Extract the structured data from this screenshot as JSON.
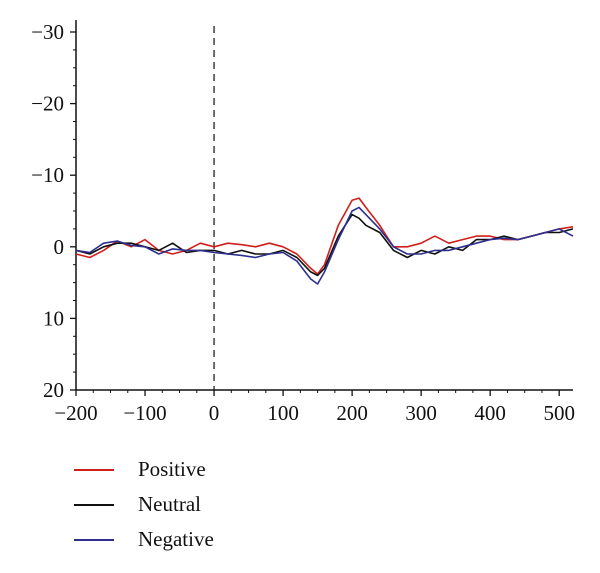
{
  "chart_data": {
    "type": "line",
    "title": "",
    "xlabel": "",
    "ylabel": "",
    "xlim": [
      -200,
      520
    ],
    "ylim": [
      20,
      -30
    ],
    "y_inverted": true,
    "grid": false,
    "legend_position": "bottom-left",
    "vline_at_x": 0,
    "x_ticks": [
      -200,
      -100,
      0,
      100,
      200,
      300,
      400,
      500
    ],
    "x_tick_labels": [
      "−200",
      "−100",
      "0",
      "100",
      "200",
      "300",
      "400",
      "500"
    ],
    "y_ticks": [
      -30,
      -20,
      -10,
      0,
      10,
      20
    ],
    "y_tick_labels": [
      "−30",
      "−20",
      "−10",
      "0",
      "10",
      "20"
    ],
    "x": [
      -200,
      -180,
      -160,
      -140,
      -120,
      -100,
      -80,
      -60,
      -40,
      -20,
      0,
      20,
      40,
      60,
      80,
      100,
      120,
      140,
      150,
      160,
      180,
      200,
      210,
      220,
      240,
      260,
      280,
      300,
      320,
      340,
      360,
      380,
      400,
      420,
      440,
      460,
      480,
      500,
      520
    ],
    "series": [
      {
        "name": "Positive",
        "color": "#d0201b",
        "values": [
          1.0,
          1.5,
          0.5,
          -0.8,
          0.0,
          -1.0,
          0.5,
          1.0,
          0.5,
          -0.5,
          0.0,
          -0.5,
          -0.3,
          0.0,
          -0.5,
          0.0,
          1.0,
          3.0,
          3.8,
          2.5,
          -3.0,
          -6.5,
          -6.8,
          -5.5,
          -3.0,
          0.0,
          0.0,
          -0.5,
          -1.5,
          -0.5,
          -1.0,
          -1.5,
          -1.5,
          -1.0,
          -1.0,
          -1.5,
          -2.0,
          -2.5,
          -2.8
        ]
      },
      {
        "name": "Neutral",
        "color": "#111111",
        "values": [
          0.5,
          1.0,
          0.0,
          -0.5,
          -0.5,
          0.0,
          0.5,
          -0.5,
          0.8,
          0.5,
          0.5,
          1.0,
          0.5,
          1.0,
          1.0,
          0.5,
          1.5,
          3.5,
          4.0,
          3.0,
          -1.5,
          -4.5,
          -4.0,
          -3.0,
          -2.0,
          0.5,
          1.5,
          0.5,
          1.0,
          0.0,
          0.5,
          -1.0,
          -1.0,
          -1.5,
          -1.0,
          -1.5,
          -2.0,
          -2.0,
          -2.5
        ]
      },
      {
        "name": "Negative",
        "color": "#2e2f8f",
        "values": [
          0.5,
          0.8,
          -0.5,
          -0.8,
          -0.2,
          0.0,
          1.0,
          0.3,
          0.5,
          0.5,
          0.8,
          1.0,
          1.2,
          1.5,
          1.0,
          0.8,
          2.0,
          4.5,
          5.2,
          3.5,
          -1.0,
          -5.0,
          -5.5,
          -4.5,
          -2.5,
          0.0,
          1.0,
          1.0,
          0.5,
          0.5,
          0.0,
          -0.5,
          -1.0,
          -1.2,
          -1.0,
          -1.5,
          -2.0,
          -2.5,
          -1.5
        ]
      }
    ]
  }
}
